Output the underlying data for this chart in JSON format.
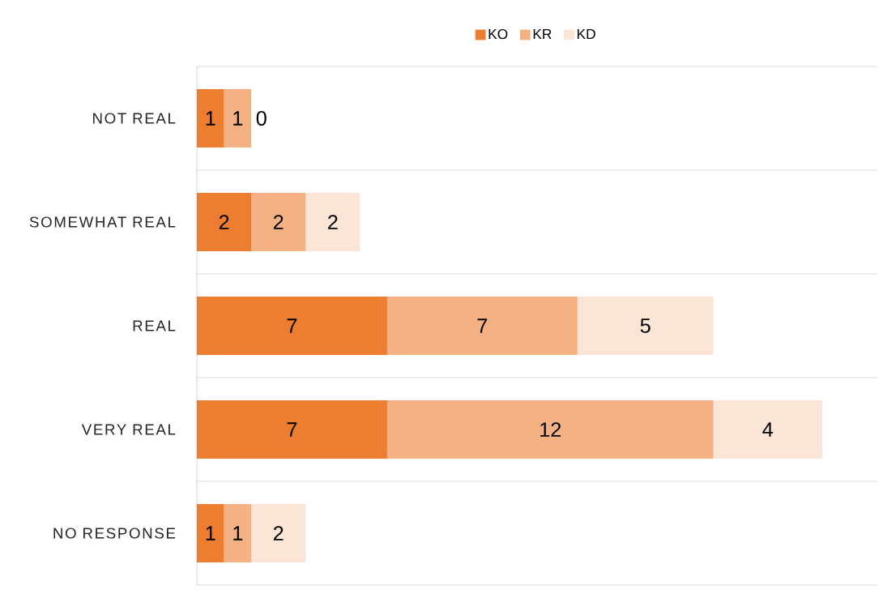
{
  "chart_data": {
    "type": "bar",
    "orientation": "horizontal",
    "stacked": true,
    "legend": "top",
    "grid": "y",
    "tick_labels": "y",
    "data_labels": true,
    "categories": [
      "NOT REAL",
      "SOMEWHAT REAL",
      "REAL",
      "VERY REAL",
      "NO RESPONSE"
    ],
    "series": [
      {
        "name": "KO",
        "color": "#ed7d31",
        "values": [
          1,
          2,
          7,
          7,
          1
        ]
      },
      {
        "name": "KR",
        "color": "#f4b183",
        "values": [
          1,
          2,
          7,
          12,
          1
        ]
      },
      {
        "name": "KD",
        "color": "#fbe5d6",
        "values": [
          0,
          2,
          5,
          4,
          2
        ]
      }
    ]
  }
}
